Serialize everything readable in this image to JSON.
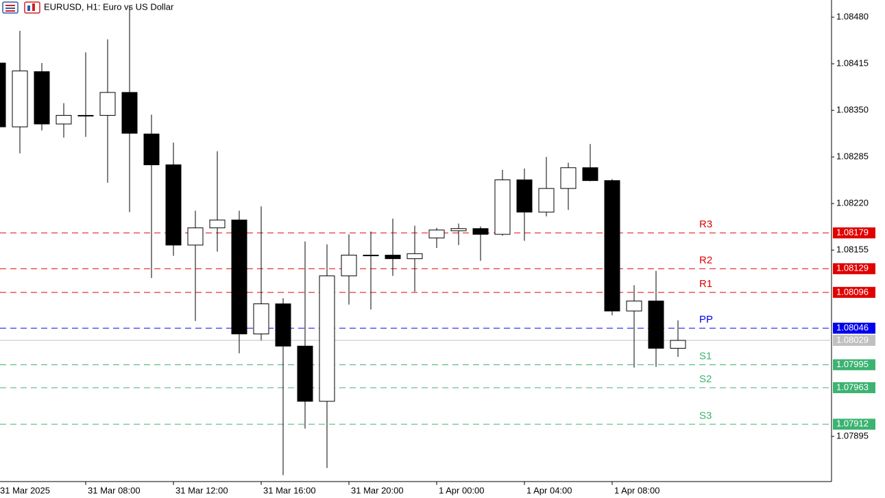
{
  "chart_data": {
    "type": "candlestick",
    "title": "EURUSD, H1:  Euro vs US Dollar",
    "categories": [
      "31 Mar 2025",
      null,
      null,
      null,
      "31 Mar 08:00",
      null,
      null,
      null,
      "31 Mar 12:00",
      null,
      null,
      null,
      "31 Mar 16:00",
      null,
      null,
      null,
      "31 Mar 20:00",
      null,
      null,
      null,
      "1 Apr 00:00",
      null,
      null,
      null,
      "1 Apr 04:00",
      null,
      null,
      null,
      "1 Apr 08:00",
      null,
      null,
      null
    ],
    "open": [
      1.08416,
      1.08327,
      1.08404,
      1.08331,
      1.08343,
      1.08343,
      1.08375,
      1.08317,
      1.08274,
      1.08162,
      1.08186,
      1.08197,
      1.08038,
      1.0808,
      1.08021,
      1.07944,
      1.08119,
      1.08148,
      1.08148,
      1.08143,
      1.08172,
      1.08182,
      1.08185,
      1.08177,
      1.08253,
      1.08208,
      1.08241,
      1.0827,
      1.08252,
      1.0807,
      1.08084,
      1.08018
    ],
    "high": [
      1.08416,
      1.08461,
      1.08416,
      1.0836,
      1.08431,
      1.08449,
      1.08494,
      1.08344,
      1.08305,
      1.0821,
      1.08293,
      1.0821,
      1.08216,
      1.08088,
      1.08167,
      1.08163,
      1.08177,
      1.08181,
      1.08199,
      1.08189,
      1.08186,
      1.08192,
      1.08188,
      1.08267,
      1.08269,
      1.08285,
      1.08277,
      1.08303,
      1.08254,
      1.08106,
      1.08126,
      1.08057
    ],
    "low": [
      1.08327,
      1.0829,
      1.08322,
      1.08312,
      1.08313,
      1.08249,
      1.08208,
      1.08116,
      1.08147,
      1.08056,
      1.08153,
      1.08011,
      1.08029,
      1.07841,
      1.07906,
      1.07851,
      1.08079,
      1.08072,
      1.08119,
      1.08097,
      1.08158,
      1.08162,
      1.0814,
      1.08175,
      1.08168,
      1.08202,
      1.08211,
      1.08251,
      1.08064,
      1.07991,
      1.07992,
      1.08006
    ],
    "close": [
      1.08327,
      1.08405,
      1.08331,
      1.08343,
      1.08343,
      1.08375,
      1.08318,
      1.08274,
      1.08162,
      1.08186,
      1.08197,
      1.08038,
      1.0808,
      1.08021,
      1.07944,
      1.08119,
      1.08148,
      1.08147,
      1.08143,
      1.0815,
      1.08183,
      1.08185,
      1.08177,
      1.08253,
      1.08208,
      1.08241,
      1.0827,
      1.08252,
      1.0807,
      1.08084,
      1.08018,
      1.08029
    ],
    "up_color": "#ffffff",
    "down_color": "#000000",
    "ylim": [
      1.07832,
      1.08504
    ],
    "yticks": [
      {
        "value": 1.0848,
        "label": "1.08480"
      },
      1.08415,
      {
        "value": 1.0835,
        "label": "1.08350"
      },
      1.08285,
      {
        "value": 1.0822,
        "label": "1.08220"
      },
      1.08155,
      1.07895
    ],
    "levels": [
      {
        "name": "R3",
        "value": 1.08179,
        "color": "#e00000"
      },
      {
        "name": "R2",
        "value": 1.08129,
        "color": "#e00000"
      },
      {
        "name": "R1",
        "value": 1.08096,
        "color": "#e00000"
      },
      {
        "name": "PP",
        "value": 1.08046,
        "color": "#0000ee"
      },
      {
        "name": "S1",
        "value": 1.07995,
        "color": "#3cb371"
      },
      {
        "name": "S2",
        "value": 1.07963,
        "color": "#3cb371"
      },
      {
        "name": "S3",
        "value": 1.07912,
        "color": "#3cb371"
      }
    ],
    "price_line": {
      "value": 1.08029,
      "color": "#c0c0c0"
    }
  }
}
